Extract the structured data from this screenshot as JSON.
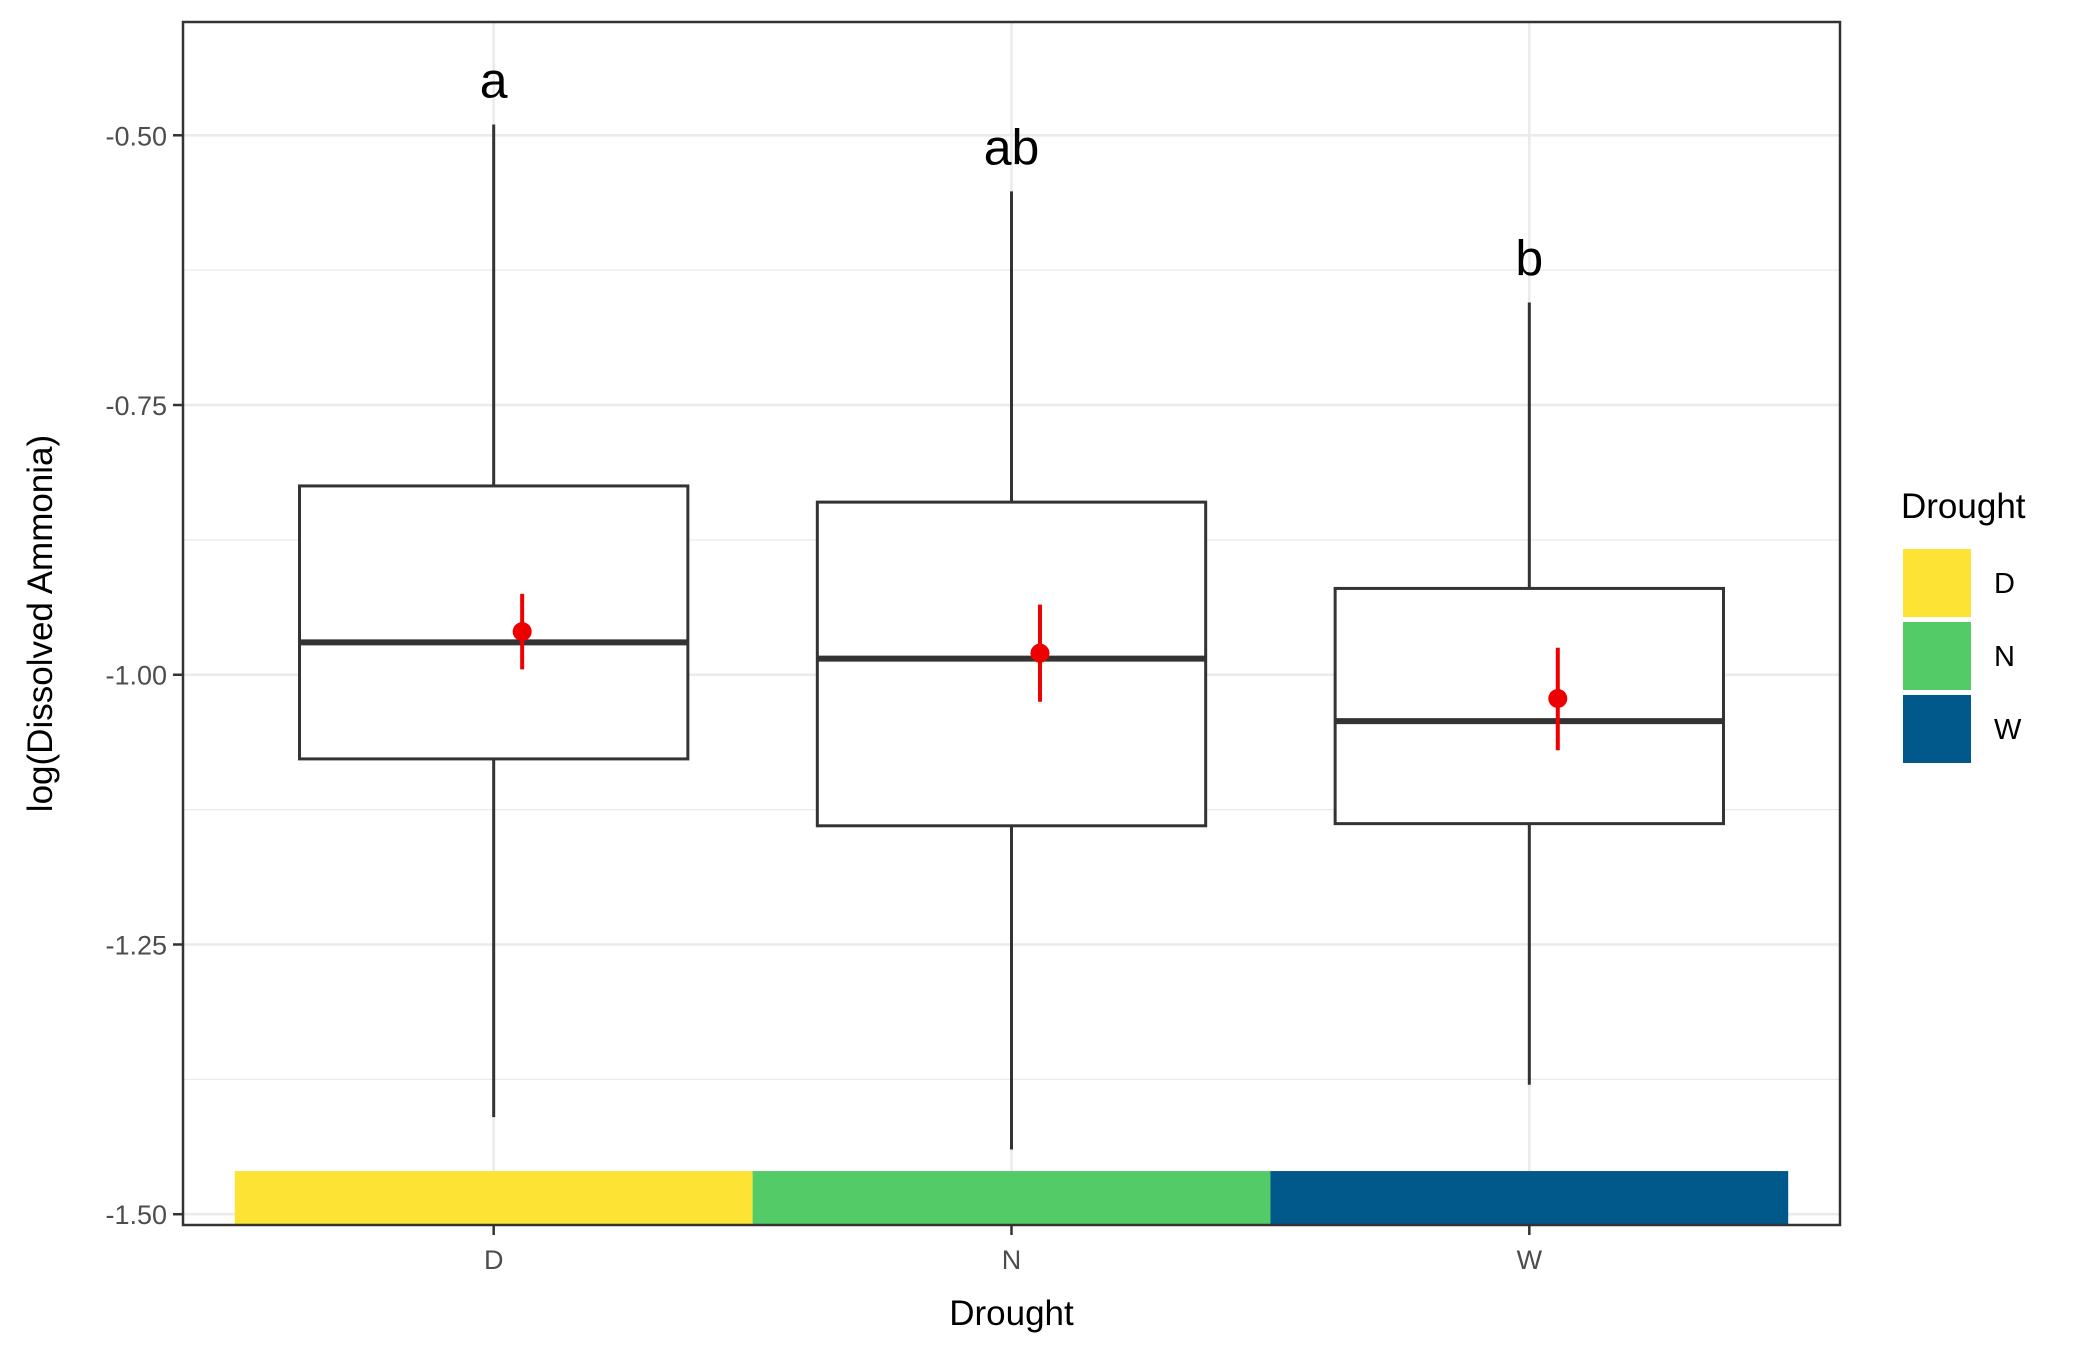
{
  "chart_data": {
    "type": "box",
    "xlabel": "Drought",
    "ylabel": "log(Dissolved Ammonia)",
    "ylim": [
      -1.51,
      -0.395
    ],
    "y_ticks": [
      -0.5,
      -0.75,
      -1.0,
      -1.25,
      -1.5
    ],
    "y_tick_labels": [
      "-0.50",
      "-0.75",
      "-1.00",
      "-1.25",
      "-1.50"
    ],
    "categories": [
      "D",
      "N",
      "W"
    ],
    "boxes": [
      {
        "category": "D",
        "whisker_low": -1.41,
        "q1": -1.078,
        "median": -0.97,
        "q3": -0.825,
        "whisker_high": -0.49,
        "mean": -0.96,
        "mean_ci": [
          -0.995,
          -0.925
        ],
        "letter": "a"
      },
      {
        "category": "N",
        "whisker_low": -1.44,
        "q1": -1.14,
        "median": -0.985,
        "q3": -0.84,
        "whisker_high": -0.552,
        "mean": -0.98,
        "mean_ci": [
          -1.025,
          -0.935
        ],
        "letter": "ab"
      },
      {
        "category": "W",
        "whisker_low": -1.38,
        "q1": -1.138,
        "median": -1.043,
        "q3": -0.92,
        "whisker_high": -0.655,
        "mean": -1.022,
        "mean_ci": [
          -1.07,
          -0.975
        ],
        "letter": "b"
      }
    ],
    "color_band_y": [
      -1.51,
      -1.46
    ],
    "grid": true,
    "legend": {
      "title": "Drought",
      "position": "right",
      "items": [
        {
          "label": "D",
          "color": "#fde333"
        },
        {
          "label": "N",
          "color": "#53cc67"
        },
        {
          "label": "W",
          "color": "#00588b"
        }
      ]
    },
    "mean_color": "#ee0000"
  }
}
